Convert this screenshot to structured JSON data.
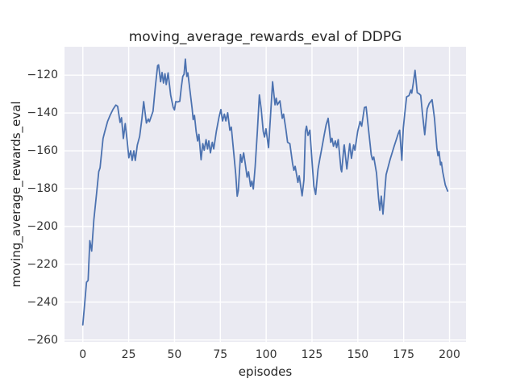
{
  "figure": {
    "title": "moving_average_rewards_eval of DDPG",
    "xlabel": "episodes",
    "ylabel": "moving_average_rewards_eval"
  },
  "chart_data": {
    "type": "line",
    "title": "moving_average_rewards_eval of DDPG",
    "xlabel": "episodes",
    "ylabel": "moving_average_rewards_eval",
    "xlim": [
      -10,
      209
    ],
    "ylim": [
      -261,
      -105
    ],
    "xticks": [
      0,
      25,
      50,
      75,
      100,
      125,
      150,
      175,
      200
    ],
    "yticks": [
      -120,
      -140,
      -160,
      -180,
      -200,
      -220,
      -240,
      -260
    ],
    "xticklabels": [
      "0",
      "25",
      "50",
      "75",
      "100",
      "125",
      "150",
      "175",
      "200"
    ],
    "yticklabels": [
      "−120",
      "−140",
      "−160",
      "−180",
      "−200",
      "−220",
      "−240",
      "−260"
    ],
    "grid": true,
    "legend": false,
    "plot_bg": "#EAEAF2",
    "grid_color": "#FFFFFF",
    "line_color": "#4C72B0",
    "line_width": 1.8,
    "series": [
      {
        "name": "moving_average_rewards_eval",
        "color": "#4C72B0",
        "points": [
          [
            0,
            -252
          ],
          [
            1,
            -241
          ],
          [
            2,
            -229.5
          ],
          [
            2.9,
            -228.5
          ],
          [
            3.8,
            -207.5
          ],
          [
            4.8,
            -213
          ],
          [
            6,
            -196.5
          ],
          [
            7.5,
            -182.5
          ],
          [
            8.7,
            -171
          ],
          [
            9.4,
            -169
          ],
          [
            11,
            -153.5
          ],
          [
            12,
            -149.8
          ],
          [
            13.5,
            -144.5
          ],
          [
            15,
            -141
          ],
          [
            16.5,
            -138
          ],
          [
            18,
            -135.8
          ],
          [
            19,
            -136.5
          ],
          [
            20.3,
            -145
          ],
          [
            21.1,
            -142.5
          ],
          [
            22.1,
            -153.5
          ],
          [
            23.1,
            -145.6
          ],
          [
            24.2,
            -155
          ],
          [
            25.1,
            -163.7
          ],
          [
            26.1,
            -160
          ],
          [
            26.9,
            -165.1
          ],
          [
            27.8,
            -160
          ],
          [
            28.6,
            -165.1
          ],
          [
            29.7,
            -157
          ],
          [
            31,
            -152.4
          ],
          [
            32.2,
            -143
          ],
          [
            33.2,
            -134
          ],
          [
            34.7,
            -145.3
          ],
          [
            35.7,
            -143.2
          ],
          [
            36.3,
            -144.6
          ],
          [
            38.3,
            -139.1
          ],
          [
            39.5,
            -126.4
          ],
          [
            40.8,
            -115
          ],
          [
            41.3,
            -114.6
          ],
          [
            42.4,
            -123.5
          ],
          [
            43.2,
            -118.6
          ],
          [
            44,
            -124.2
          ],
          [
            44.8,
            -119.3
          ],
          [
            45.5,
            -125
          ],
          [
            46.5,
            -118.8
          ],
          [
            47.9,
            -130.6
          ],
          [
            49.3,
            -137
          ],
          [
            50,
            -138.4
          ],
          [
            50.7,
            -134
          ],
          [
            51.7,
            -134.2
          ],
          [
            52.9,
            -133.8
          ],
          [
            53.7,
            -126.4
          ],
          [
            54.5,
            -120.7
          ],
          [
            55.2,
            -119.5
          ],
          [
            55.9,
            -111.5
          ],
          [
            56.7,
            -120.7
          ],
          [
            57.3,
            -118.8
          ],
          [
            58.9,
            -132
          ],
          [
            59.6,
            -137.7
          ],
          [
            60.2,
            -143.5
          ],
          [
            60.9,
            -141.3
          ],
          [
            61.8,
            -149.8
          ],
          [
            62.6,
            -154.8
          ],
          [
            63.3,
            -151.3
          ],
          [
            64.5,
            -164.7
          ],
          [
            65.4,
            -156.2
          ],
          [
            66.2,
            -159.7
          ],
          [
            67.2,
            -154.1
          ],
          [
            68,
            -159
          ],
          [
            68.7,
            -154.8
          ],
          [
            69.6,
            -161.1
          ],
          [
            70.6,
            -155.5
          ],
          [
            71.4,
            -159
          ],
          [
            72.8,
            -149.8
          ],
          [
            74.3,
            -142.1
          ],
          [
            75.3,
            -138.2
          ],
          [
            76.2,
            -144.2
          ],
          [
            77.2,
            -140.6
          ],
          [
            78,
            -144.2
          ],
          [
            79,
            -139.9
          ],
          [
            80.2,
            -149.1
          ],
          [
            81,
            -147.5
          ],
          [
            82.4,
            -161.9
          ],
          [
            83.4,
            -172.5
          ],
          [
            84.2,
            -184
          ],
          [
            84.8,
            -181
          ],
          [
            86,
            -162
          ],
          [
            86.7,
            -166.1
          ],
          [
            87.7,
            -161.1
          ],
          [
            88.6,
            -166.8
          ],
          [
            89.6,
            -173.9
          ],
          [
            90.4,
            -171.1
          ],
          [
            91.5,
            -178.8
          ],
          [
            92.2,
            -176
          ],
          [
            93,
            -180.2
          ],
          [
            94,
            -168.2
          ],
          [
            95.2,
            -149.8
          ],
          [
            96.3,
            -130.5
          ],
          [
            97.3,
            -138
          ],
          [
            98.4,
            -149.8
          ],
          [
            99.1,
            -152.7
          ],
          [
            99.9,
            -148.4
          ],
          [
            101.3,
            -158.3
          ],
          [
            102.4,
            -141
          ],
          [
            103.5,
            -123.5
          ],
          [
            104.8,
            -135.7
          ],
          [
            105.5,
            -132.2
          ],
          [
            106.1,
            -135.7
          ],
          [
            107.5,
            -133.6
          ],
          [
            108.8,
            -142.8
          ],
          [
            109.5,
            -140.6
          ],
          [
            110.7,
            -148.4
          ],
          [
            111.7,
            -155.5
          ],
          [
            112.9,
            -156.2
          ],
          [
            114.4,
            -166.8
          ],
          [
            115.1,
            -170.3
          ],
          [
            115.8,
            -168.2
          ],
          [
            117.3,
            -176.7
          ],
          [
            118,
            -173.2
          ],
          [
            119.6,
            -183.8
          ],
          [
            120.6,
            -175.3
          ],
          [
            121.4,
            -149.8
          ],
          [
            122,
            -147
          ],
          [
            122.8,
            -151.9
          ],
          [
            123.8,
            -149.1
          ],
          [
            125,
            -165.4
          ],
          [
            126,
            -178.8
          ],
          [
            127,
            -183.1
          ],
          [
            128.3,
            -169.6
          ],
          [
            129.3,
            -164
          ],
          [
            130.4,
            -158.3
          ],
          [
            131.6,
            -151.9
          ],
          [
            132.7,
            -146.3
          ],
          [
            133.8,
            -142.8
          ],
          [
            135.2,
            -155.5
          ],
          [
            135.9,
            -153.4
          ],
          [
            136.7,
            -157.6
          ],
          [
            137.7,
            -154.8
          ],
          [
            138.4,
            -158.3
          ],
          [
            139.3,
            -154.1
          ],
          [
            140.8,
            -169.8
          ],
          [
            141.2,
            -171.1
          ],
          [
            142.4,
            -157.5
          ],
          [
            142.6,
            -156.9
          ],
          [
            144,
            -169.6
          ],
          [
            145.6,
            -156.2
          ],
          [
            146.5,
            -164
          ],
          [
            147.7,
            -156.9
          ],
          [
            148.4,
            -159.7
          ],
          [
            149.9,
            -149.8
          ],
          [
            151.2,
            -144.5
          ],
          [
            152.1,
            -147
          ],
          [
            153.6,
            -137.1
          ],
          [
            154.5,
            -136.8
          ],
          [
            155.8,
            -148.4
          ],
          [
            156.6,
            -155.5
          ],
          [
            157.3,
            -162
          ],
          [
            158,
            -164.7
          ],
          [
            158.7,
            -163.3
          ],
          [
            160.2,
            -171.8
          ],
          [
            161.3,
            -185
          ],
          [
            162,
            -191.5
          ],
          [
            162.8,
            -184
          ],
          [
            163.7,
            -193.5
          ],
          [
            165.4,
            -172.6
          ],
          [
            167.6,
            -164.5
          ],
          [
            169.8,
            -157.5
          ],
          [
            172,
            -151
          ],
          [
            172.8,
            -149.1
          ],
          [
            174,
            -165
          ],
          [
            174.8,
            -148
          ],
          [
            175.6,
            -140.5
          ],
          [
            176.6,
            -131.5
          ],
          [
            177.9,
            -130.8
          ],
          [
            178.9,
            -127.9
          ],
          [
            179.4,
            -129.5
          ],
          [
            180.3,
            -124
          ],
          [
            181.2,
            -117.5
          ],
          [
            182.4,
            -129.3
          ],
          [
            183.4,
            -129.8
          ],
          [
            184.3,
            -130.7
          ],
          [
            185.2,
            -140
          ],
          [
            186.5,
            -151.5
          ],
          [
            187.8,
            -137.8
          ],
          [
            188.9,
            -135
          ],
          [
            190.5,
            -133
          ],
          [
            191.8,
            -142.8
          ],
          [
            193.1,
            -158.3
          ],
          [
            193.7,
            -162.6
          ],
          [
            194.3,
            -160.4
          ],
          [
            195.1,
            -167.5
          ],
          [
            195.6,
            -166.1
          ],
          [
            196.3,
            -171.1
          ],
          [
            197.7,
            -178.1
          ],
          [
            199,
            -181.3
          ]
        ]
      }
    ]
  }
}
